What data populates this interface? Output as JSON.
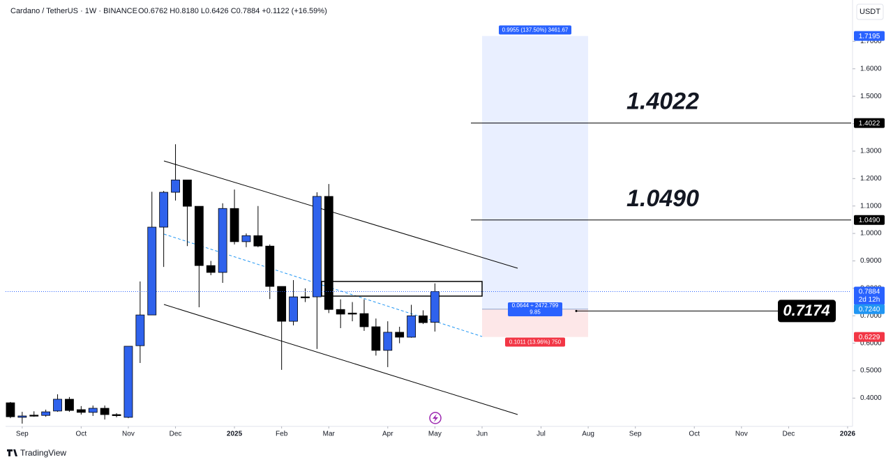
{
  "chart_data": {
    "type": "candlestick",
    "title": "Cardano / TetherUS · 1W · BINANCE",
    "ohlc_text": "O0.6762 H0.8180 L0.6426 C0.7884 +0.1122 (+16.59%)",
    "currency": "USDT",
    "brand": "TradingView",
    "up_color": "#2f62ec",
    "down_color": "#000000",
    "open": [
      0.383,
      0.33,
      0.338,
      0.337,
      0.353,
      0.396,
      0.358,
      0.348,
      0.363,
      0.34,
      0.33,
      0.591,
      0.703,
      1.023,
      1.15,
      1.195,
      1.099,
      0.883,
      0.858,
      1.091,
      0.97,
      0.992,
      0.954,
      0.807,
      0.68,
      0.769,
      0.769,
      1.135,
      0.723,
      0.71,
      0.708,
      0.66,
      0.574,
      0.64,
      0.622,
      0.7,
      0.6762
    ],
    "high": [
      0.386,
      0.35,
      0.352,
      0.358,
      0.414,
      0.404,
      0.371,
      0.373,
      0.373,
      0.345,
      0.589,
      0.825,
      1.152,
      1.155,
      1.325,
      1.195,
      1.099,
      0.9,
      1.11,
      1.16,
      1.0,
      1.1,
      0.96,
      0.807,
      0.83,
      0.8,
      1.15,
      1.18,
      0.76,
      0.75,
      0.76,
      0.69,
      0.68,
      0.66,
      0.74,
      0.72,
      0.818
    ],
    "low": [
      0.327,
      0.307,
      0.332,
      0.332,
      0.35,
      0.35,
      0.34,
      0.335,
      0.322,
      0.33,
      0.327,
      0.528,
      0.703,
      0.878,
      1.12,
      0.954,
      0.731,
      0.848,
      0.82,
      0.96,
      0.95,
      0.95,
      0.761,
      0.503,
      0.665,
      0.75,
      0.579,
      0.71,
      0.655,
      0.68,
      0.645,
      0.555,
      0.513,
      0.6,
      0.62,
      0.67,
      0.6426
    ],
    "close": [
      0.332,
      0.335,
      0.336,
      0.35,
      0.396,
      0.355,
      0.348,
      0.363,
      0.34,
      0.336,
      0.589,
      0.703,
      1.023,
      1.15,
      1.195,
      1.099,
      0.883,
      0.858,
      1.091,
      0.97,
      0.992,
      0.954,
      0.807,
      0.68,
      0.769,
      0.766,
      1.135,
      0.723,
      0.706,
      0.706,
      0.66,
      0.574,
      0.64,
      0.622,
      0.7,
      0.675,
      0.7884
    ],
    "ylim": [
      0.297,
      1.838
    ],
    "yticks": [
      {
        "value": 0.4,
        "label": "0.4000"
      },
      {
        "value": 0.5,
        "label": "0.5000"
      },
      {
        "value": 0.6,
        "label": "0.6000"
      },
      {
        "value": 0.7,
        "label": "0.7000"
      },
      {
        "value": 0.8,
        "label": "0.8000"
      },
      {
        "value": 0.9,
        "label": "0.9000"
      },
      {
        "value": 1.0,
        "label": "1.0000"
      },
      {
        "value": 1.1,
        "label": "1.1000"
      },
      {
        "value": 1.2,
        "label": "1.2000"
      },
      {
        "value": 1.3,
        "label": "1.3000"
      },
      {
        "value": 1.4,
        "label": "1.4000"
      },
      {
        "value": 1.5,
        "label": "1.5000"
      },
      {
        "value": 1.6,
        "label": "1.6000"
      },
      {
        "value": 1.7,
        "label": "1.7000"
      }
    ],
    "xlim": [
      -0.41,
      71.3
    ],
    "xticks": [
      {
        "value": 1,
        "label": "Sep"
      },
      {
        "value": 6,
        "label": "Oct"
      },
      {
        "value": 10,
        "label": "Nov"
      },
      {
        "value": 14,
        "label": "Dec"
      },
      {
        "value": 19,
        "label": "2025"
      },
      {
        "value": 23,
        "label": "Feb"
      },
      {
        "value": 27,
        "label": "Mar"
      },
      {
        "value": 32,
        "label": "Apr"
      },
      {
        "value": 36,
        "label": "May"
      },
      {
        "value": 40,
        "label": "Jun"
      },
      {
        "value": 45,
        "label": "Jul"
      },
      {
        "value": 49,
        "label": "Aug"
      },
      {
        "value": 53,
        "label": "Sep"
      },
      {
        "value": 58,
        "label": "Oct"
      },
      {
        "value": 62,
        "label": "Nov"
      },
      {
        "value": 66,
        "label": "Dec"
      },
      {
        "value": 71,
        "label": "2026"
      }
    ],
    "levels": [
      {
        "value": 1.4022,
        "label": "1.4022"
      },
      {
        "value": 1.049,
        "label": "1.0490"
      }
    ],
    "marker": {
      "value": 0.7174,
      "label": "0.7174"
    },
    "last_price": {
      "value": 0.7884,
      "label": "0.7884",
      "countdown": "2d 12h"
    },
    "position": {
      "entry": {
        "value": 0.724,
        "label": "0.7240"
      },
      "target": {
        "value": 1.7195,
        "label": "1.7195"
      },
      "stop": {
        "value": 0.6229,
        "label": "0.6229"
      },
      "target_text": "0.9955 (137.50%) 3461.67",
      "entry_text": "0.0644 ÷ 2472.799",
      "entry_text2": "9.85",
      "stop_text": "0.1011 (13.96%) 750"
    }
  }
}
